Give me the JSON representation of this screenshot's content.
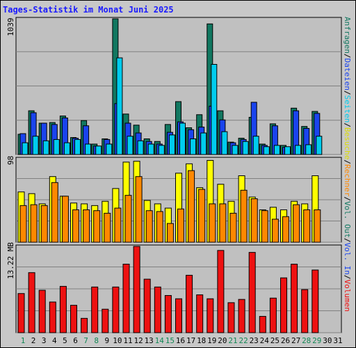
{
  "title": "Tages-Statistik im Monat Juni 2025",
  "colors": {
    "hits": "#117760",
    "files": "#1a44ee",
    "pages": "#00ccee",
    "visits": "#ffff00",
    "sites": "#ff8800",
    "kbytes": "#ee1111",
    "weekend": "#118855",
    "weekday": "#000000",
    "grid": "#808080",
    "plot_bg": "#c0c0c0"
  },
  "right_legend": [
    {
      "text": "Anfragen",
      "color": "#117760"
    },
    {
      "text": "/",
      "color": "#000000"
    },
    {
      "text": "Dateien",
      "color": "#1a44ee"
    },
    {
      "text": "/",
      "color": "#000000"
    },
    {
      "text": "Seiten",
      "color": "#00ccee"
    },
    {
      "text": "/",
      "color": "#000000"
    },
    {
      "text": "Besuche",
      "color": "#dddd00"
    },
    {
      "text": "/",
      "color": "#000000"
    },
    {
      "text": "Rechner",
      "color": "#ff8800"
    },
    {
      "text": "/",
      "color": "#000000"
    },
    {
      "text": "Vol. Out",
      "color": "#117760"
    },
    {
      "text": "/",
      "color": "#000000"
    },
    {
      "text": "Vol. In",
      "color": "#1a44ee"
    },
    {
      "text": "/",
      "color": "#000000"
    },
    {
      "text": "Volumen",
      "color": "#ee1111"
    }
  ],
  "chart_data": [
    {
      "type": "bar",
      "ylabel": "1039",
      "ylim": [
        0,
        1039
      ],
      "x": [
        1,
        2,
        3,
        4,
        5,
        6,
        7,
        8,
        9,
        10,
        11,
        12,
        13,
        14,
        15,
        16,
        17,
        18,
        19,
        20,
        21,
        22,
        23,
        24,
        25,
        26,
        27,
        28,
        29,
        30
      ],
      "series": [
        {
          "name": "Anfragen",
          "values": [
            155,
            335,
            240,
            245,
            295,
            130,
            260,
            80,
            120,
            1039,
            310,
            225,
            120,
            100,
            230,
            405,
            205,
            305,
            1000,
            335,
            95,
            125,
            285,
            80,
            235,
            70,
            355,
            215,
            330,
            0
          ]
        },
        {
          "name": "Dateien",
          "values": [
            160,
            320,
            240,
            230,
            280,
            125,
            220,
            65,
            115,
            390,
            240,
            165,
            100,
            80,
            170,
            250,
            190,
            210,
            370,
            265,
            90,
            115,
            400,
            70,
            220,
            55,
            335,
            200,
            315,
            0
          ]
        },
        {
          "name": "Seiten",
          "values": [
            90,
            140,
            105,
            115,
            90,
            115,
            80,
            65,
            80,
            740,
            140,
            105,
            80,
            70,
            150,
            240,
            120,
            165,
            690,
            175,
            70,
            100,
            140,
            60,
            70,
            60,
            70,
            75,
            140,
            0
          ]
        }
      ]
    },
    {
      "type": "bar",
      "ylabel": "98",
      "ylim": [
        0,
        98
      ],
      "x": [
        1,
        2,
        3,
        4,
        5,
        6,
        7,
        8,
        9,
        10,
        11,
        12,
        13,
        14,
        15,
        16,
        17,
        18,
        19,
        20,
        21,
        22,
        23,
        24,
        25,
        26,
        27,
        28,
        29,
        30
      ],
      "series": [
        {
          "name": "Besuche",
          "values": [
            59,
            57,
            45,
            77,
            54,
            46,
            45,
            43,
            48,
            63,
            94,
            95,
            49,
            45,
            40,
            81,
            92,
            64,
            96,
            68,
            48,
            78,
            53,
            38,
            41,
            38,
            48,
            45,
            78,
            0
          ]
        },
        {
          "name": "Rechner",
          "values": [
            43,
            44,
            43,
            70,
            54,
            38,
            38,
            37,
            34,
            40,
            55,
            77,
            37,
            36,
            22,
            39,
            84,
            62,
            45,
            45,
            34,
            61,
            51,
            37,
            27,
            30,
            44,
            38,
            38,
            0
          ]
        }
      ]
    },
    {
      "type": "bar",
      "ylabel": "13.22 MB",
      "ylim": [
        0,
        13.22
      ],
      "x": [
        1,
        2,
        3,
        4,
        5,
        6,
        7,
        8,
        9,
        10,
        11,
        12,
        13,
        14,
        15,
        16,
        17,
        18,
        19,
        20,
        21,
        22,
        23,
        24,
        25,
        26,
        27,
        28,
        29,
        30
      ],
      "series": [
        {
          "name": "Volumen",
          "values": [
            6.0,
            9.2,
            6.5,
            4.7,
            7.1,
            4.2,
            2.2,
            7.0,
            3.6,
            7.0,
            10.5,
            13.22,
            8.2,
            7.0,
            5.7,
            5.2,
            8.8,
            5.8,
            5.2,
            12.6,
            4.6,
            5.1,
            12.3,
            2.5,
            5.3,
            8.4,
            10.5,
            6.6,
            9.6,
            0
          ]
        }
      ]
    }
  ],
  "x_labels": [
    "1",
    "2",
    "3",
    "4",
    "5",
    "6",
    "7",
    "8",
    "9",
    "10",
    "11",
    "12",
    "13",
    "14",
    "15",
    "16",
    "17",
    "18",
    "19",
    "20",
    "21",
    "22",
    "23",
    "24",
    "25",
    "26",
    "27",
    "28",
    "29",
    "30",
    "31"
  ],
  "weekend_days": [
    1,
    7,
    8,
    14,
    15,
    21,
    22,
    28,
    29
  ]
}
